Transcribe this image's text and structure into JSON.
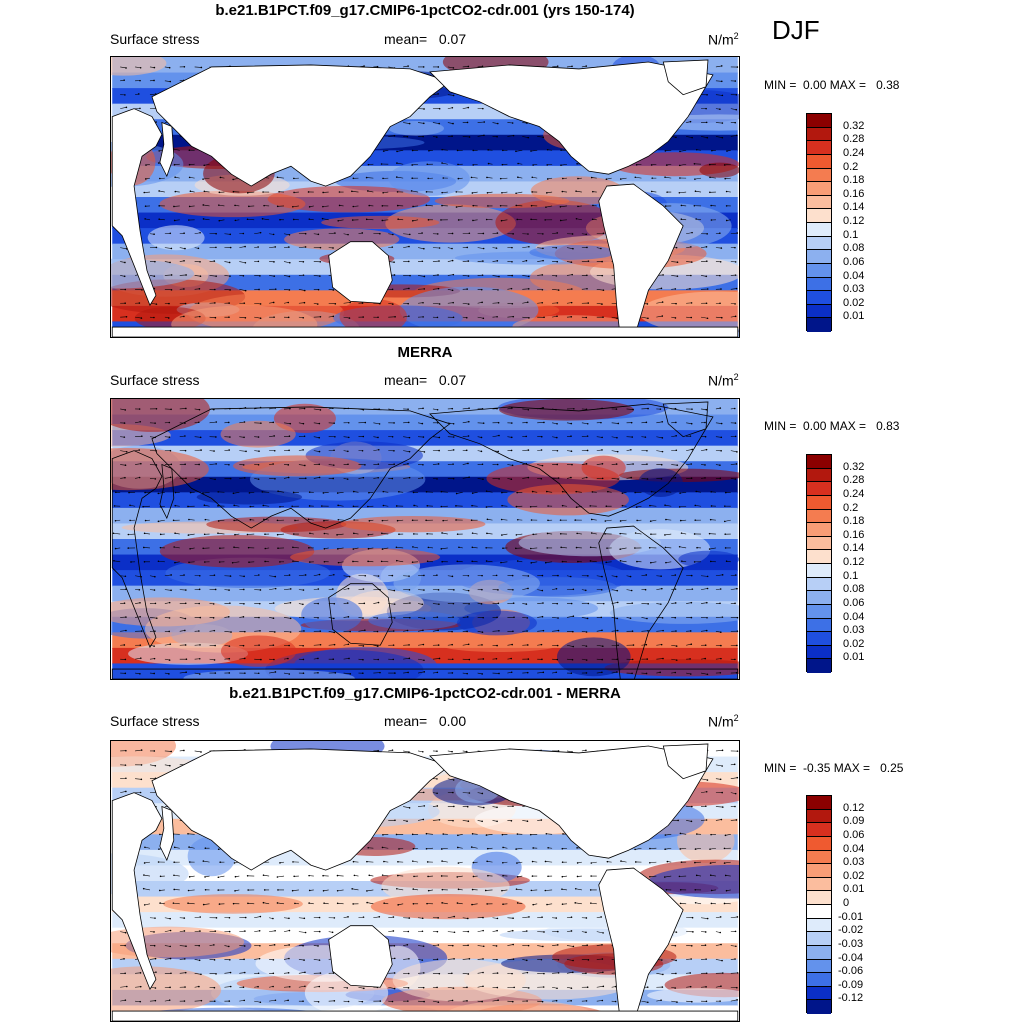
{
  "season": "DJF",
  "panels": [
    {
      "title": "b.e21.B1PCT.f09_g17.CMIP6-1pctCO2-cdr.001 (yrs 150-174)",
      "left_label": "Surface stress",
      "mean_label": "mean=",
      "mean_value": "0.07",
      "units": "N/m",
      "units_exp": "2",
      "min_label": "MIN =",
      "min_value": "0.00",
      "max_label": "MAX =",
      "max_value": "0.38",
      "colorbar_labels": [
        "0.32",
        "0.28",
        "0.24",
        "0.2",
        "0.18",
        "0.16",
        "0.14",
        "0.12",
        "0.1",
        "0.08",
        "0.06",
        "0.04",
        "0.03",
        "0.02",
        "0.01"
      ]
    },
    {
      "title": "MERRA",
      "left_label": "Surface stress",
      "mean_label": "mean=",
      "mean_value": "0.07",
      "units": "N/m",
      "units_exp": "2",
      "min_label": "MIN =",
      "min_value": "0.00",
      "max_label": "MAX =",
      "max_value": "0.83",
      "colorbar_labels": [
        "0.32",
        "0.28",
        "0.24",
        "0.2",
        "0.18",
        "0.16",
        "0.14",
        "0.12",
        "0.1",
        "0.08",
        "0.06",
        "0.04",
        "0.03",
        "0.02",
        "0.01"
      ]
    },
    {
      "title": "b.e21.B1PCT.f09_g17.CMIP6-1pctCO2-cdr.001 - MERRA",
      "left_label": "Surface stress",
      "mean_label": "mean=",
      "mean_value": "0.00",
      "units": "N/m",
      "units_exp": "2",
      "min_label": "MIN =",
      "min_value": "-0.35",
      "max_label": "MAX =",
      "max_value": "0.25",
      "colorbar_labels": [
        "0.12",
        "0.09",
        "0.06",
        "0.04",
        "0.03",
        "0.02",
        "0.01",
        "0",
        "-0.01",
        "-0.02",
        "-0.03",
        "-0.04",
        "-0.06",
        "-0.09",
        "-0.12"
      ]
    }
  ],
  "colors": {
    "abs_scale": [
      "#8b0000",
      "#b2180e",
      "#d7301f",
      "#ef5a30",
      "#f47c50",
      "#f89d76",
      "#fbbd9e",
      "#fde0cd",
      "#deebfb",
      "#b7cff6",
      "#8cb0ef",
      "#6392ec",
      "#3d70e6",
      "#1f4fe0",
      "#0b2fc7",
      "#00158a"
    ],
    "diff_scale": [
      "#8b0000",
      "#b2180e",
      "#d7301f",
      "#ef5a30",
      "#f47c50",
      "#f89d76",
      "#fbbd9e",
      "#fde0cd",
      "#ffffff",
      "#deebfb",
      "#b7cff6",
      "#8cb0ef",
      "#6392ec",
      "#3d70e6",
      "#0b2fc7",
      "#00158a"
    ],
    "land": "#ffffff",
    "coast": "#000000"
  }
}
